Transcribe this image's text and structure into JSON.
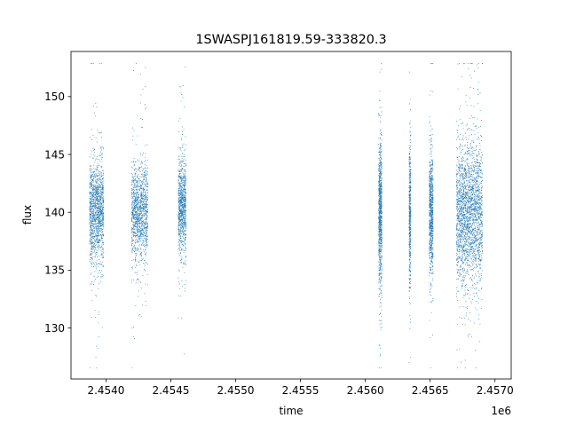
{
  "chart_data": {
    "type": "scatter",
    "title": "1SWASPJ161819.59-333820.3",
    "xlabel": "time",
    "ylabel": "flux",
    "x_offset_label": "1e6",
    "xlim": [
      2453730,
      2457125
    ],
    "ylim": [
      125.6,
      153.9
    ],
    "xticks": [
      2454000,
      2454500,
      2455000,
      2455500,
      2456000,
      2456500,
      2457000
    ],
    "xtick_labels": [
      "2.4540",
      "2.4545",
      "2.4550",
      "2.4555",
      "2.4560",
      "2.4565",
      "2.4570"
    ],
    "yticks": [
      130,
      135,
      140,
      145,
      150
    ],
    "ytick_labels": [
      "130",
      "135",
      "140",
      "145",
      "150"
    ],
    "grid": false,
    "marker_color": "#1f77b4",
    "series": [
      {
        "clusters": [
          {
            "x_start": 2453870,
            "x_end": 2453980,
            "y_center": 140.0,
            "core_spread": 2.1,
            "outlier_spread": 6.5,
            "count": 1400
          },
          {
            "x_start": 2454195,
            "x_end": 2454320,
            "y_center": 140.2,
            "core_spread": 2.0,
            "outlier_spread": 6.0,
            "count": 1300
          },
          {
            "x_start": 2454555,
            "x_end": 2454615,
            "y_center": 140.4,
            "core_spread": 2.0,
            "outlier_spread": 5.5,
            "count": 900
          },
          {
            "x_start": 2456100,
            "x_end": 2456125,
            "y_center": 140.0,
            "core_spread": 3.0,
            "outlier_spread": 7.0,
            "count": 900
          },
          {
            "x_start": 2456335,
            "x_end": 2456348,
            "y_center": 139.5,
            "core_spread": 3.0,
            "outlier_spread": 6.0,
            "count": 500
          },
          {
            "x_start": 2456490,
            "x_end": 2456520,
            "y_center": 140.0,
            "core_spread": 2.6,
            "outlier_spread": 6.0,
            "count": 800
          },
          {
            "x_start": 2456700,
            "x_end": 2456900,
            "y_center": 140.0,
            "core_spread": 3.0,
            "outlier_spread": 7.0,
            "count": 2400
          }
        ]
      }
    ]
  }
}
